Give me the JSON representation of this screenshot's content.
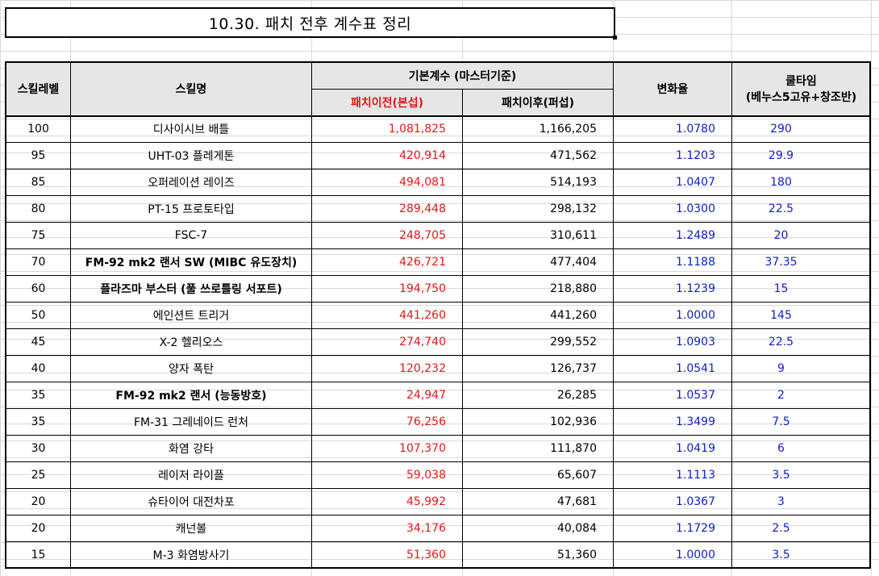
{
  "title": "10.30. 패치 전후 계수표 정리",
  "headers": {
    "skill_level": "스킬레벨",
    "skill_name": "스킬명",
    "base_coeff": "기본계수 (마스터기준)",
    "before": "패치이전(본섭)",
    "after": "패치이후(퍼섭)",
    "change_rate": "변화율",
    "cooltime_line1": "쿨타임",
    "cooltime_line2": "(베누스5고유+창조반)"
  },
  "rows": [
    {
      "level": "100",
      "name": "디사이시브  배틀",
      "bold": false,
      "before": "1,081,825",
      "after": "1,166,205",
      "rate": "1.0780",
      "cool": "290"
    },
    {
      "level": "95",
      "name": "UHT-03 플레게톤",
      "bold": false,
      "before": "420,914",
      "after": "471,562",
      "rate": "1.1203",
      "cool": "29.9"
    },
    {
      "level": "85",
      "name": "오퍼레이션 레이즈",
      "bold": false,
      "before": "494,081",
      "after": "514,193",
      "rate": "1.0407",
      "cool": "180"
    },
    {
      "level": "80",
      "name": "PT-15 프로토타입",
      "bold": false,
      "before": "289,448",
      "after": "298,132",
      "rate": "1.0300",
      "cool": "22.5"
    },
    {
      "level": "75",
      "name": "FSC-7",
      "bold": false,
      "before": "248,705",
      "after": "310,611",
      "rate": "1.2489",
      "cool": "20"
    },
    {
      "level": "70",
      "name": "FM-92 mk2 랜서 SW (MIBC 유도장치)",
      "bold": true,
      "before": "426,721",
      "after": "477,404",
      "rate": "1.1188",
      "cool": "37.35"
    },
    {
      "level": "60",
      "name": "플라즈마 부스터 (풀 쓰로틀링 서포트)",
      "bold": true,
      "before": "194,750",
      "after": "218,880",
      "rate": "1.1239",
      "cool": "15"
    },
    {
      "level": "50",
      "name": "에인션트 트리거",
      "bold": false,
      "before": "441,260",
      "after": "441,260",
      "rate": "1.0000",
      "cool": "145"
    },
    {
      "level": "45",
      "name": "X-2 헬리오스",
      "bold": false,
      "before": "274,740",
      "after": "299,552",
      "rate": "1.0903",
      "cool": "22.5"
    },
    {
      "level": "40",
      "name": "양자 폭탄",
      "bold": false,
      "before": "120,232",
      "after": "126,737",
      "rate": "1.0541",
      "cool": "9"
    },
    {
      "level": "35",
      "name": "FM-92 mk2 랜서 (능동방호)",
      "bold": true,
      "before": "24,947",
      "after": "26,285",
      "rate": "1.0537",
      "cool": "2"
    },
    {
      "level": "35",
      "name": "FM-31 그레네이드 런처",
      "bold": false,
      "before": "76,256",
      "after": "102,936",
      "rate": "1.3499",
      "cool": "7.5"
    },
    {
      "level": "30",
      "name": "화염 강타",
      "bold": false,
      "before": "107,370",
      "after": "111,870",
      "rate": "1.0419",
      "cool": "6"
    },
    {
      "level": "25",
      "name": "레이저 라이플",
      "bold": false,
      "before": "59,038",
      "after": "65,607",
      "rate": "1.1113",
      "cool": "3.5"
    },
    {
      "level": "20",
      "name": "슈타이어 대전차포",
      "bold": false,
      "before": "45,992",
      "after": "47,681",
      "rate": "1.0367",
      "cool": "3"
    },
    {
      "level": "20",
      "name": "캐넌볼",
      "bold": false,
      "before": "34,176",
      "after": "40,084",
      "rate": "1.1729",
      "cool": "2.5"
    },
    {
      "level": "15",
      "name": "M-3 화염방사기",
      "bold": false,
      "before": "51,360",
      "after": "51,360",
      "rate": "1.0000",
      "cool": "3.5"
    }
  ],
  "colors": {
    "before_values": "#e01818",
    "rate_and_cool": "#1020c0",
    "header_bg": "#e6e6e6",
    "gridline": "#d9d9d9"
  }
}
